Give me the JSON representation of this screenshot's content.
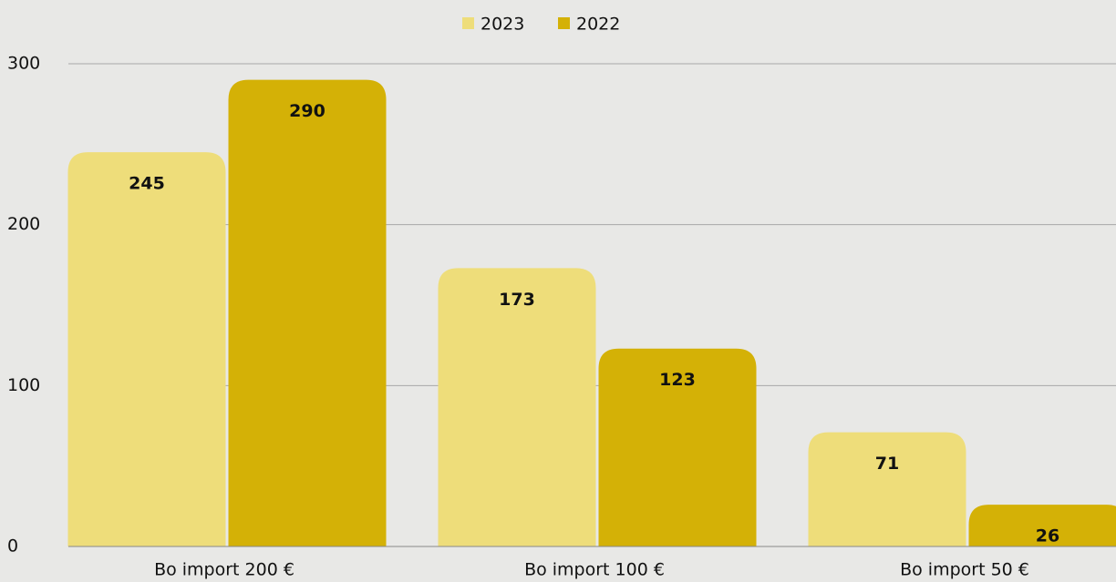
{
  "chart_data": {
    "type": "bar",
    "categories": [
      "Bo import 200 €",
      "Bo import 100 €",
      "Bo import 50 €"
    ],
    "series": [
      {
        "name": "2023",
        "color": "#eedd7a",
        "values": [
          245,
          173,
          71
        ]
      },
      {
        "name": "2022",
        "color": "#d4b106",
        "values": [
          290,
          123,
          26
        ]
      }
    ],
    "ylim": [
      0,
      300
    ],
    "yticks": [
      0,
      100,
      200,
      300
    ],
    "grid": true,
    "legend": "top"
  }
}
